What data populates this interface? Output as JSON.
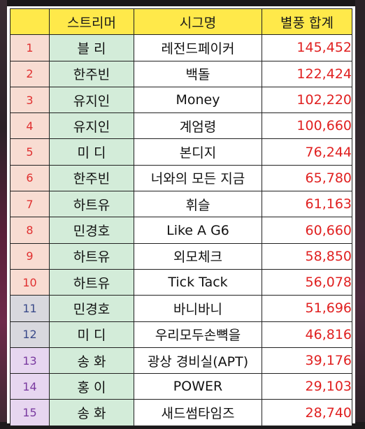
{
  "colors": {
    "header_bg": "#ffe94a",
    "streamer_bg": "#d3ecd9",
    "rank_bg_top": "#f8dcd2",
    "rank_bg_mid": "#d8d8de",
    "rank_bg_low": "#e7d6f0",
    "total_text": "#e02020"
  },
  "table": {
    "headers": {
      "rank": "",
      "streamer": "스트리머",
      "signature": "시그명",
      "total": "별풍 합계"
    },
    "rows": [
      {
        "rank": "1",
        "streamer": "블    리",
        "signature": "레전드페이커",
        "total": "145,452"
      },
      {
        "rank": "2",
        "streamer": "한주빈",
        "signature": "백돌",
        "total": "122,424"
      },
      {
        "rank": "3",
        "streamer": "유지인",
        "signature": "Money",
        "total": "102,220"
      },
      {
        "rank": "4",
        "streamer": "유지인",
        "signature": "계엄령",
        "total": "100,660"
      },
      {
        "rank": "5",
        "streamer": "미    디",
        "signature": "본디지",
        "total": "76,244"
      },
      {
        "rank": "6",
        "streamer": "한주빈",
        "signature": "너와의 모든 지금",
        "total": "65,780"
      },
      {
        "rank": "7",
        "streamer": "하트유",
        "signature": "휘슬",
        "total": "61,163"
      },
      {
        "rank": "8",
        "streamer": "민경호",
        "signature": "Like A G6",
        "total": "60,660"
      },
      {
        "rank": "9",
        "streamer": "하트유",
        "signature": "외모체크",
        "total": "58,850"
      },
      {
        "rank": "10",
        "streamer": "하트유",
        "signature": "Tick Tack",
        "total": "56,078"
      },
      {
        "rank": "11",
        "streamer": "민경호",
        "signature": "바니바니",
        "total": "51,696"
      },
      {
        "rank": "12",
        "streamer": "미    디",
        "signature": "우리모두손뼉을",
        "total": "46,816"
      },
      {
        "rank": "13",
        "streamer": "송    화",
        "signature": "광상 경비실(APT)",
        "total": "39,176"
      },
      {
        "rank": "14",
        "streamer": "홍    이",
        "signature": "POWER",
        "total": "29,103"
      },
      {
        "rank": "15",
        "streamer": "송    화",
        "signature": "새드썸타임즈",
        "total": "28,740"
      }
    ]
  }
}
